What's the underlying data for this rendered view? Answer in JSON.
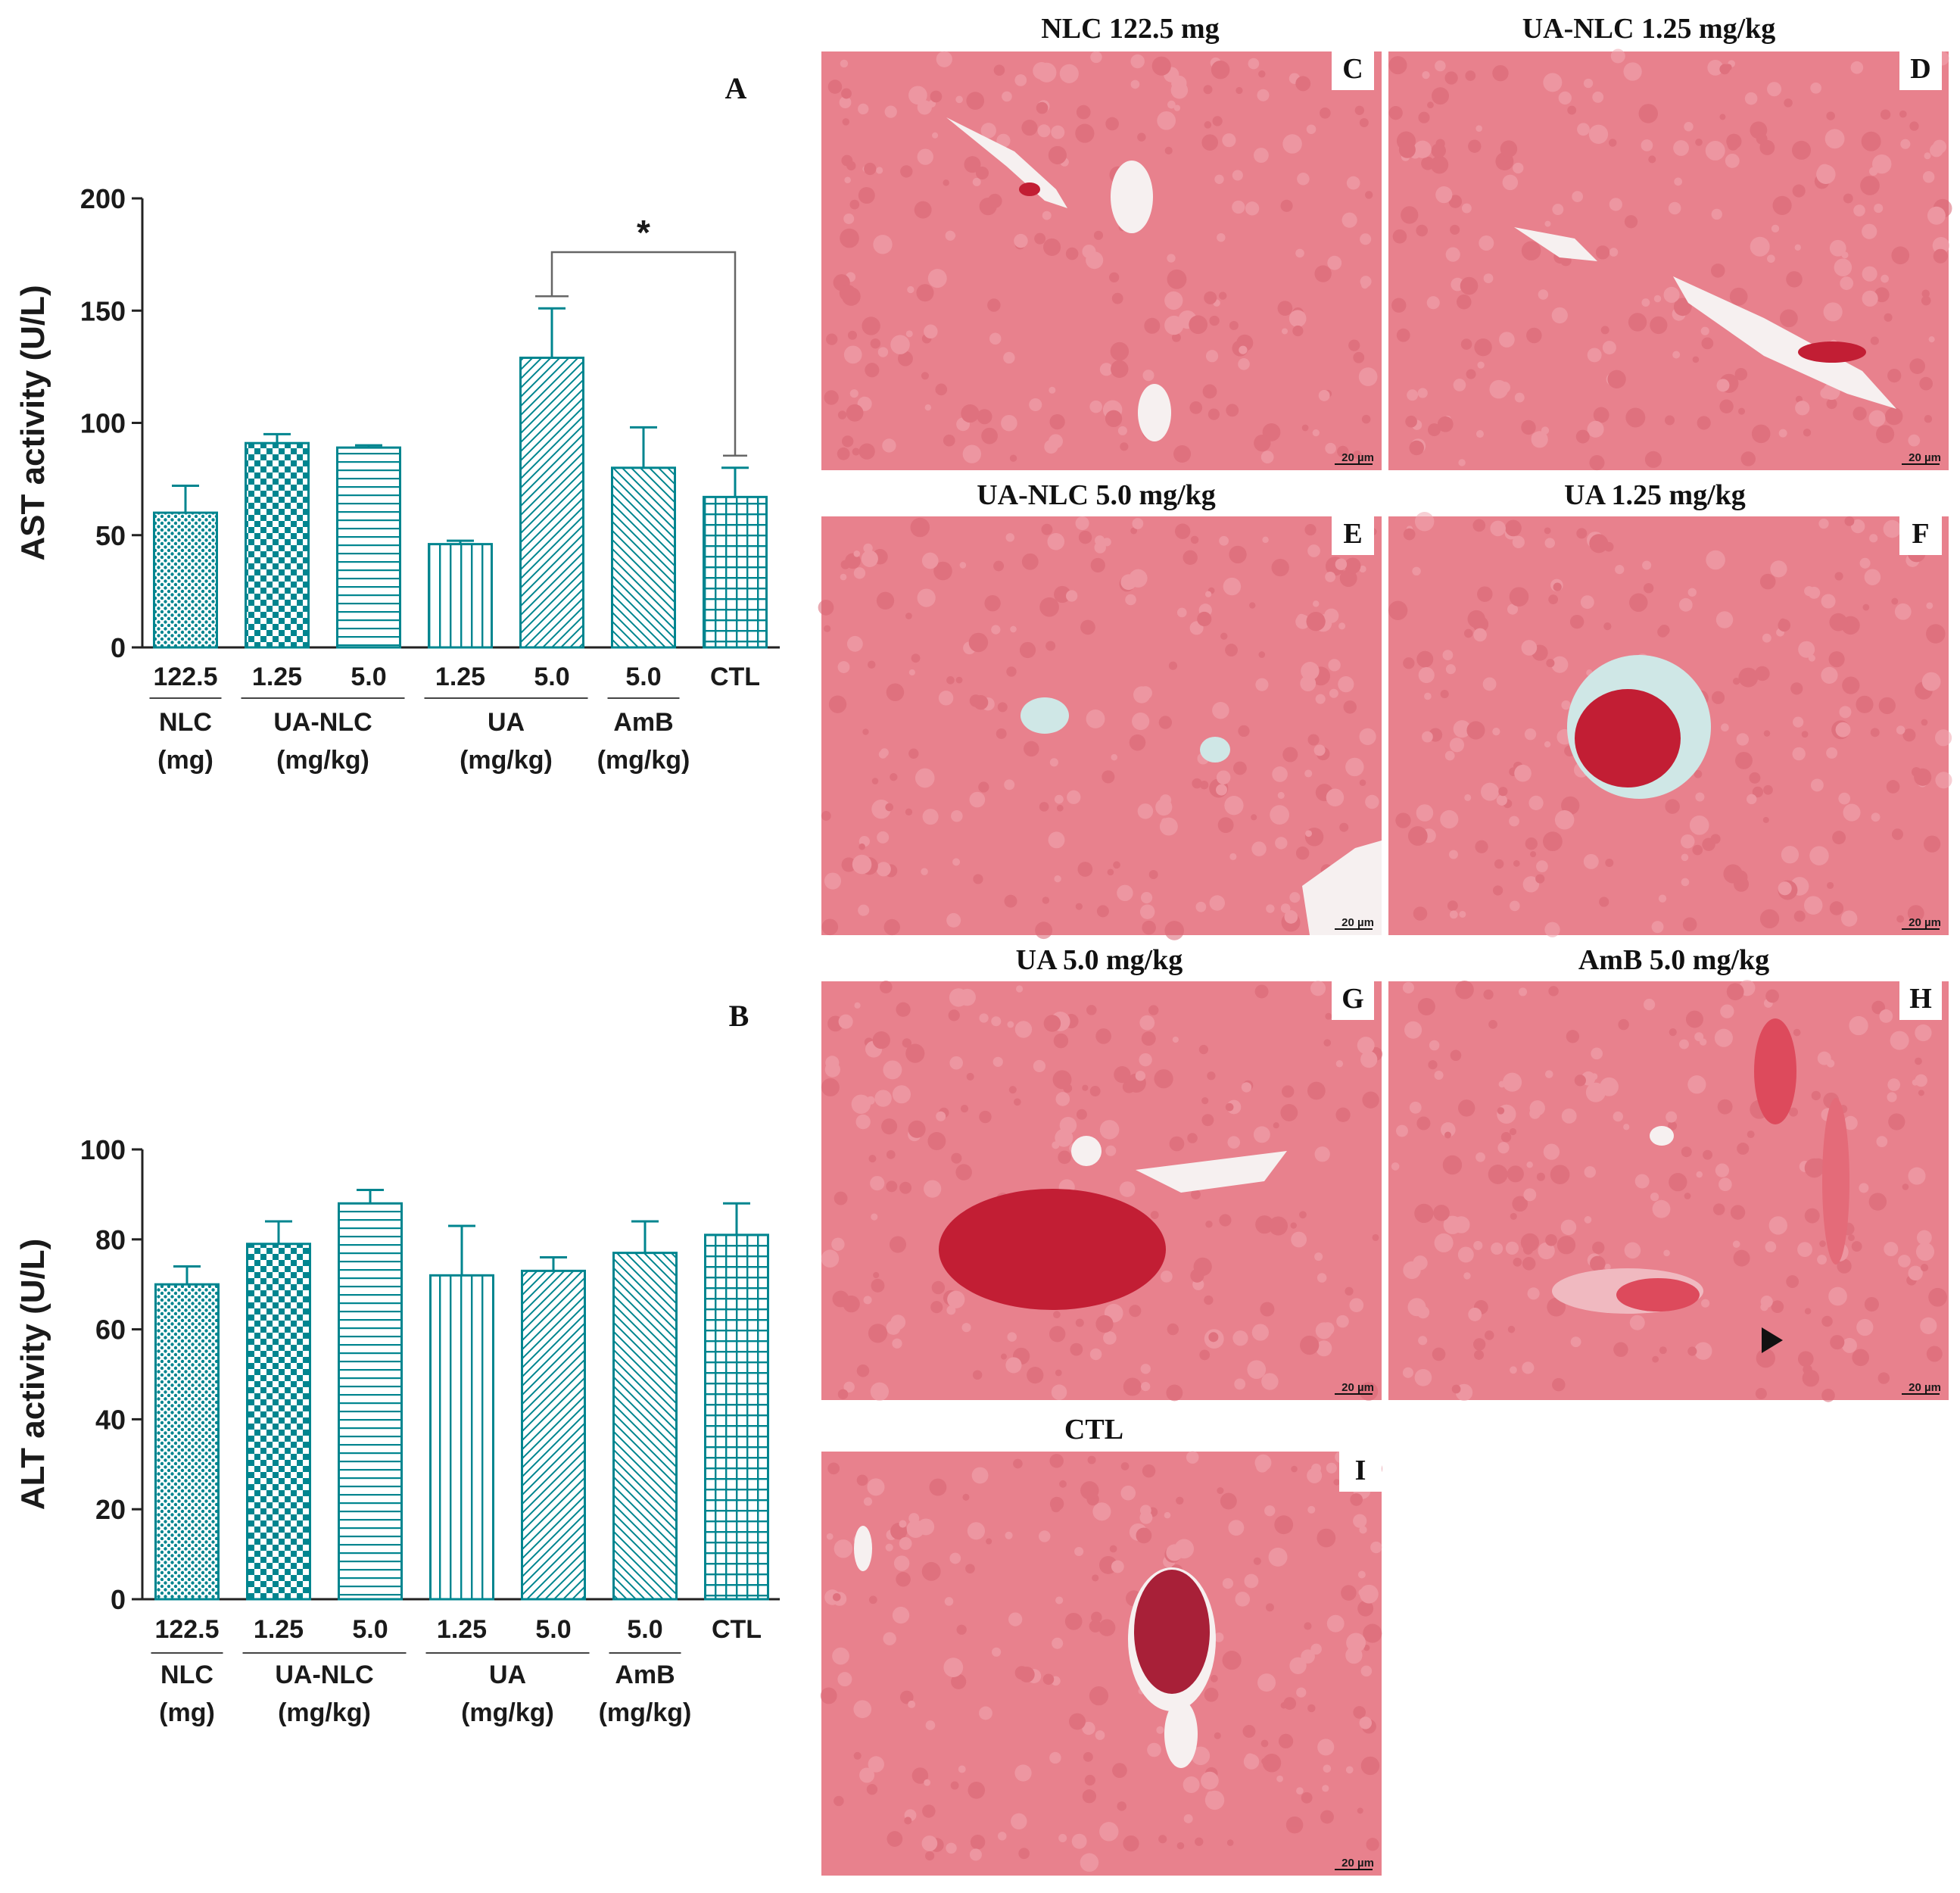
{
  "colors": {
    "teal": "#00858f",
    "tissue_bg": "#e8818d",
    "tissue_dark": "#d96472",
    "tissue_light": "#f2a8b2",
    "lumen": "#f6f0f0",
    "blood": "#c21e34",
    "text": "#111111"
  },
  "panels": {
    "A": "A",
    "B": "B"
  },
  "chart_data": [
    {
      "panel": "A",
      "type": "bar",
      "ylabel": "AST activity (U/L)",
      "ylim": [
        0,
        200
      ],
      "yticks": [
        0,
        50,
        100,
        150,
        200
      ],
      "categories": [
        "122.5",
        "1.25",
        "5.0",
        "1.25",
        "5.0",
        "5.0",
        "CTL"
      ],
      "values": [
        60,
        91,
        89,
        46,
        129,
        80,
        67
      ],
      "errors": [
        12,
        4,
        1,
        1.5,
        22,
        18,
        13
      ],
      "patterns": [
        "dots",
        "checker",
        "hlines",
        "vlines",
        "diag-r",
        "diag-l",
        "grid"
      ],
      "groups": [
        {
          "label": "NLC",
          "unit": "(mg)",
          "from": 0,
          "to": 0
        },
        {
          "label": "UA-NLC",
          "unit": "(mg/kg)",
          "from": 1,
          "to": 2
        },
        {
          "label": "UA",
          "unit": "(mg/kg)",
          "from": 3,
          "to": 4
        },
        {
          "label": "AmB",
          "unit": "(mg/kg)",
          "from": 5,
          "to": 5
        }
      ],
      "significance": {
        "from": 4,
        "to": 6,
        "label": "*"
      }
    },
    {
      "panel": "B",
      "type": "bar",
      "ylabel": "ALT activity (U/L)",
      "ylim": [
        0,
        100
      ],
      "yticks": [
        0,
        20,
        40,
        60,
        80,
        100
      ],
      "categories": [
        "122.5",
        "1.25",
        "5.0",
        "1.25",
        "5.0",
        "5.0",
        "CTL"
      ],
      "values": [
        70,
        79,
        88,
        72,
        73,
        77,
        81
      ],
      "errors": [
        4,
        5,
        3,
        11,
        3,
        7,
        7
      ],
      "patterns": [
        "dots",
        "checker",
        "hlines",
        "vlines",
        "diag-r",
        "diag-l",
        "grid"
      ],
      "groups": [
        {
          "label": "NLC",
          "unit": "(mg)",
          "from": 0,
          "to": 0
        },
        {
          "label": "UA-NLC",
          "unit": "(mg/kg)",
          "from": 1,
          "to": 2
        },
        {
          "label": "UA",
          "unit": "(mg/kg)",
          "from": 3,
          "to": 4
        },
        {
          "label": "AmB",
          "unit": "(mg/kg)",
          "from": 5,
          "to": 5
        }
      ]
    }
  ],
  "micrographs": [
    {
      "id": "C",
      "title": "NLC 122.5 mg",
      "letter": "C",
      "scale": "20 µm"
    },
    {
      "id": "D",
      "title": "UA-NLC 1.25 mg/kg",
      "letter": "D",
      "scale": "20 µm"
    },
    {
      "id": "E",
      "title": "UA-NLC 5.0 mg/kg",
      "letter": "E",
      "scale": "20 µm"
    },
    {
      "id": "F",
      "title": "UA 1.25 mg/kg",
      "letter": "F",
      "scale": "20 µm"
    },
    {
      "id": "G",
      "title": "UA 5.0 mg/kg",
      "letter": "G",
      "scale": "20 µm"
    },
    {
      "id": "H",
      "title": "AmB 5.0 mg/kg",
      "letter": "H",
      "scale": "20 µm"
    },
    {
      "id": "I",
      "title": "CTL",
      "letter": "I",
      "scale": "20 µm"
    }
  ]
}
